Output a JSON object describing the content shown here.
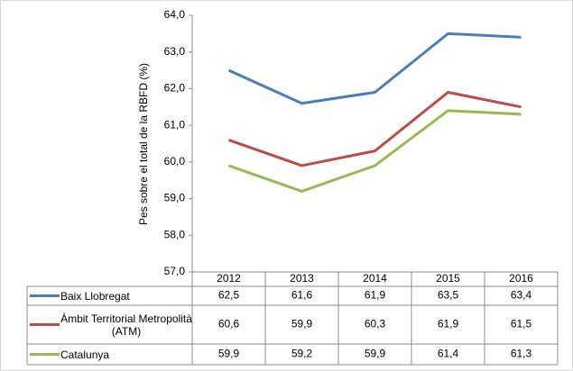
{
  "chart_data": {
    "type": "line",
    "y_label": "Pes sobre el total de la RBFD (%)",
    "categories": [
      "2012",
      "2013",
      "2014",
      "2015",
      "2016"
    ],
    "series": [
      {
        "name": "Baix Llobregat",
        "color": "#4a7ebb",
        "values": [
          62.5,
          61.6,
          61.9,
          63.5,
          63.4
        ],
        "value_labels": [
          "62,5",
          "61,6",
          "61,9",
          "63,5",
          "63,4"
        ]
      },
      {
        "name": "Àmbit Territorial Metropolità (ATM)",
        "color": "#be4b48",
        "values": [
          60.6,
          59.9,
          60.3,
          61.9,
          61.5
        ],
        "value_labels": [
          "60,6",
          "59,9",
          "60,3",
          "61,9",
          "61,5"
        ]
      },
      {
        "name": "Catalunya",
        "color": "#98b954",
        "values": [
          59.9,
          59.2,
          59.9,
          61.4,
          61.3
        ],
        "value_labels": [
          "59,9",
          "59,2",
          "59,9",
          "61,4",
          "61,3"
        ]
      }
    ],
    "ylim": [
      57,
      64
    ],
    "yticks": [
      {
        "value": 57,
        "label": "57,0"
      },
      {
        "value": 58,
        "label": "58,0"
      },
      {
        "value": 59,
        "label": "59,0"
      },
      {
        "value": 60,
        "label": "60,0"
      },
      {
        "value": 61,
        "label": "61,0"
      },
      {
        "value": 62,
        "label": "62,0"
      },
      {
        "value": 63,
        "label": "63,0"
      },
      {
        "value": 64,
        "label": "64,0"
      }
    ],
    "grid": false
  }
}
